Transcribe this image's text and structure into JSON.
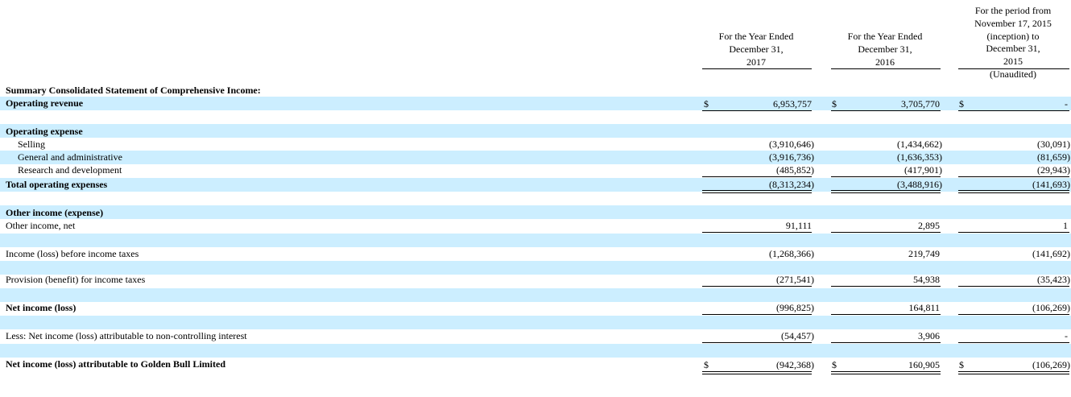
{
  "columns": [
    {
      "lines": [
        "For the Year Ended",
        "December 31,",
        "2017"
      ]
    },
    {
      "lines": [
        "For the Year Ended",
        "December 31,",
        "2016"
      ]
    },
    {
      "lines": [
        "For the period from",
        "November 17, 2015",
        "(inception) to",
        "December 31,",
        "2015",
        "(Unaudited)"
      ]
    }
  ],
  "currency_symbol": "$",
  "section_title": "Summary Consolidated Statement of Comprehensive Income:",
  "rows": {
    "operating_revenue": {
      "label": "Operating revenue",
      "values": [
        "6,953,757",
        "3,705,770",
        "-"
      ]
    },
    "operating_expense": {
      "label": "Operating expense"
    },
    "selling": {
      "label": "Selling",
      "values": [
        "(3,910,646)",
        "(1,434,662)",
        "(30,091)"
      ]
    },
    "general_admin": {
      "label": "General and administrative",
      "values": [
        "(3,916,736)",
        "(1,636,353)",
        "(81,659)"
      ]
    },
    "research_dev": {
      "label": "Research and development",
      "values": [
        "(485,852)",
        "(417,901)",
        "(29,943)"
      ]
    },
    "total_operating": {
      "label": "Total operating expenses",
      "values": [
        "(8,313,234)",
        "(3,488,916)",
        "(141,693)"
      ]
    },
    "other_income_expense": {
      "label": "Other income (expense)"
    },
    "other_income_net": {
      "label": "Other income, net",
      "values": [
        "91,111",
        "2,895",
        "1"
      ]
    },
    "income_before_tax": {
      "label": "Income (loss) before income taxes",
      "values": [
        "(1,268,366)",
        "219,749",
        "(141,692)"
      ]
    },
    "provision": {
      "label": "Provision (benefit) for income taxes",
      "values": [
        "(271,541)",
        "54,938",
        "(35,423)"
      ]
    },
    "net_income": {
      "label": "Net income (loss)",
      "values": [
        "(996,825)",
        "164,811",
        "(106,269)"
      ]
    },
    "nci": {
      "label": "Less: Net income (loss) attributable to non-controlling interest",
      "values": [
        "(54,457)",
        "3,906",
        "-"
      ]
    },
    "net_income_gbl": {
      "label": "Net income (loss) attributable to Golden Bull Limited",
      "values": [
        "(942,368)",
        "160,905",
        "(106,269)"
      ]
    }
  },
  "colors": {
    "band": "#cceeff"
  }
}
